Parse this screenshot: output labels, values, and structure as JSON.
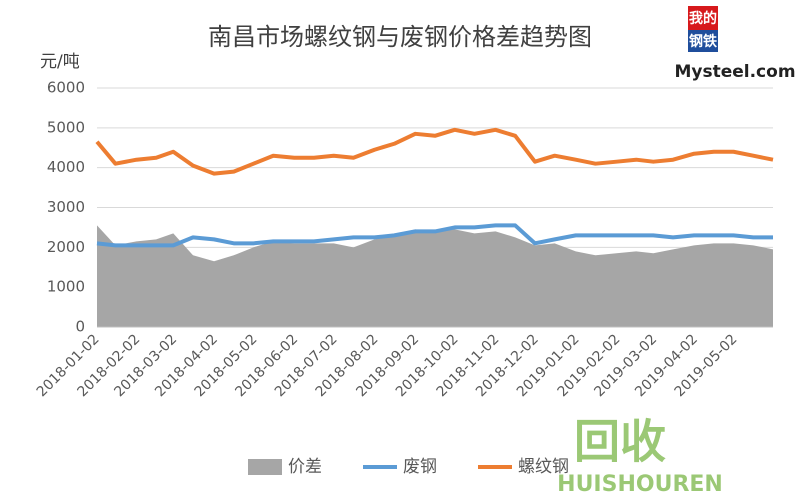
{
  "chart_data": {
    "type": "line",
    "title": "南昌市场螺纹钢与废钢价格差趋势图",
    "y_label": "元/吨",
    "logo": {
      "top": "我的",
      "middle": "钢铁",
      "bottom": "Mysteel.com"
    },
    "watermark": {
      "main": "回收",
      "sub": "HUISHOUREN"
    },
    "x": [
      "2018-01-02",
      "2018-01-16",
      "2018-02-01",
      "2018-02-16",
      "2018-03-01",
      "2018-03-16",
      "2018-04-01",
      "2018-04-16",
      "2018-05-01",
      "2018-05-16",
      "2018-06-01",
      "2018-06-16",
      "2018-07-01",
      "2018-07-16",
      "2018-08-01",
      "2018-08-16",
      "2018-09-01",
      "2018-09-16",
      "2018-10-01",
      "2018-10-16",
      "2018-11-01",
      "2018-11-16",
      "2018-12-01",
      "2018-12-16",
      "2019-01-01",
      "2019-01-16",
      "2019-02-01",
      "2019-02-16",
      "2019-03-01",
      "2019-03-16",
      "2019-04-01",
      "2019-04-16",
      "2019-05-01",
      "2019-05-16",
      "2019-05-31"
    ],
    "xlim": [
      "2018-01-02",
      "2019-05-31"
    ],
    "xticks": [
      "2018-01-02",
      "2018-02-02",
      "2018-03-02",
      "2018-04-02",
      "2018-05-02",
      "2018-06-02",
      "2018-07-02",
      "2018-08-02",
      "2018-09-02",
      "2018-10-02",
      "2018-11-02",
      "2018-12-02",
      "2019-01-02",
      "2019-02-02",
      "2019-03-02",
      "2019-04-02",
      "2019-05-02"
    ],
    "ylim": [
      0,
      6000
    ],
    "yticks": [
      0,
      1000,
      2000,
      3000,
      4000,
      5000,
      6000
    ],
    "grid": true,
    "series": [
      {
        "name": "价差",
        "kind": "area",
        "color": "#a6a6a6",
        "values": [
          2550,
          2050,
          2150,
          2200,
          2350,
          1800,
          1650,
          1800,
          2000,
          2150,
          2100,
          2100,
          2100,
          2000,
          2200,
          2300,
          2450,
          2400,
          2450,
          2350,
          2400,
          2250,
          2050,
          2100,
          1900,
          1800,
          1850,
          1900,
          1850,
          1950,
          2050,
          2100,
          2100,
          2050,
          1950
        ]
      },
      {
        "name": "废钢",
        "kind": "line",
        "color": "#5b9bd5",
        "values": [
          2100,
          2050,
          2050,
          2050,
          2050,
          2250,
          2200,
          2100,
          2100,
          2150,
          2150,
          2150,
          2200,
          2250,
          2250,
          2300,
          2400,
          2400,
          2500,
          2500,
          2550,
          2550,
          2100,
          2200,
          2300,
          2300,
          2300,
          2300,
          2300,
          2250,
          2300,
          2300,
          2300,
          2250,
          2250
        ]
      },
      {
        "name": "螺纹钢",
        "kind": "line",
        "color": "#ed7d31",
        "values": [
          4650,
          4100,
          4200,
          4250,
          4400,
          4050,
          3850,
          3900,
          4100,
          4300,
          4250,
          4250,
          4300,
          4250,
          4450,
          4600,
          4850,
          4800,
          4950,
          4850,
          4950,
          4800,
          4150,
          4300,
          4200,
          4100,
          4150,
          4200,
          4150,
          4200,
          4350,
          4400,
          4400,
          4300,
          4200
        ]
      }
    ]
  }
}
